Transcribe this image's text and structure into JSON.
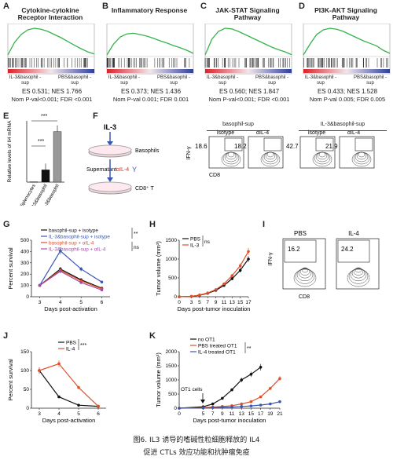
{
  "panelsTop": [
    {
      "letter": "A",
      "title": "Cytokine-cytokine Receptor Interaction",
      "es": "ES 0.531; NES 1.766",
      "nom": "Nom P-val<0.001; FDR <0.001"
    },
    {
      "letter": "B",
      "title": "Inflammatory Response",
      "es": "ES 0.373; NES 1.436",
      "nom": "Nom P-val 0.001; FDR 0.001"
    },
    {
      "letter": "C",
      "title": "JAK-STAT Signaling Pathway",
      "es": "ES 0.560; NES 1.847",
      "nom": "Nom P-val<0.001; FDR <0.001"
    },
    {
      "letter": "D",
      "title": "PI3K-AKT Signaling Pathway",
      "es": "ES 0.433; NES 1.528",
      "nom": "Nom P-val 0.005; FDR 0.005"
    }
  ],
  "gseaLeft": "IL-3&basophil -sup",
  "gseaRight": "PBS&basophil -sup",
  "panelE": {
    "letter": "E",
    "ylabel": "Relative levels of Il4 mRNA",
    "categories": [
      "Splenocytes",
      "PBS&basophil",
      "IL-3&basophil"
    ],
    "stars1": "***",
    "stars2": "***"
  },
  "panelF": {
    "letter": "F",
    "il3": "IL-3",
    "basophils": "Basophils",
    "supernatant": "Supernatant",
    "ail4": "αIL-4",
    "cd8t": "CD8⁺ T",
    "groupLeft": "basophil-sup",
    "groupRight": "IL-3&basophil-sup",
    "isotype": "isotype",
    "ail4col": "αIL-4",
    "values": [
      "18.6",
      "18.2",
      "42.7",
      "21.9"
    ],
    "yaxis": "IFN-γ",
    "xaxis": "CD8"
  },
  "panelG": {
    "letter": "G",
    "ylabel": "Percent survival",
    "xlabel": "Days post-activation",
    "xticks": [
      "3",
      "4",
      "5",
      "6"
    ],
    "yticks": [
      "0",
      "100",
      "200",
      "300",
      "400",
      "500"
    ],
    "legend": [
      "basophil-sup + isotype",
      "IL-3&basophil-sup + isotype",
      "basophil-sup + αIL-4",
      "IL-3&basophil-sup + αIL-4"
    ],
    "sig1": "**",
    "sig2": "ns"
  },
  "panelH": {
    "letter": "H",
    "ylabel": "Tumor volume (mm³)",
    "xlabel": "Days post-tumor inoculation",
    "xticks": [
      "0",
      "3",
      "5",
      "7",
      "9",
      "11",
      "13",
      "15",
      "17"
    ],
    "yticks": [
      "0",
      "500",
      "1000",
      "1500"
    ],
    "legend": [
      "PBS",
      "IL-3"
    ],
    "sig": "ns"
  },
  "panelI": {
    "letter": "I",
    "labels": [
      "PBS",
      "IL-4"
    ],
    "values": [
      "16.2",
      "24.2"
    ],
    "yaxis": "IFN-γ",
    "xaxis": "CD8"
  },
  "panelJ": {
    "letter": "J",
    "ylabel": "Percent survival",
    "xlabel": "Days post-activation",
    "xticks": [
      "3",
      "4",
      "5",
      "6"
    ],
    "yticks": [
      "0",
      "50",
      "100",
      "150"
    ],
    "legend": [
      "PBS",
      "IL-4"
    ],
    "sig": "***"
  },
  "panelK": {
    "letter": "K",
    "ylabel": "Tumor volume (mm³)",
    "xlabel": "Days post-tumor inoculation",
    "xticks": [
      "0",
      "5",
      "7",
      "9",
      "11",
      "13",
      "15",
      "17",
      "19",
      "21"
    ],
    "yticks": [
      "0",
      "500",
      "1000",
      "1500",
      "2000"
    ],
    "legend": [
      "no OT1",
      "PBS treated OT1",
      "IL-4 treated OT1"
    ],
    "sig": "**",
    "arrow": "OT1 cells"
  },
  "caption1": "图6. IL3 诱导的嗜碱性粒细胞释放的 IL4",
  "caption2": "促进 CTLs 效应功能和抗肿瘤免疫",
  "colors": {
    "black": "#111111",
    "blue": "#3a57b5",
    "red": "#e0502a",
    "purple": "#9e4fa0"
  },
  "chart_data": [
    {
      "type": "bar",
      "panel": "E",
      "categories": [
        "Splenocytes",
        "PBS&basophil",
        "IL-3&basophil"
      ],
      "values": [
        1,
        40,
        165
      ],
      "ylim": [
        0,
        200
      ]
    },
    {
      "type": "line",
      "panel": "G",
      "x": [
        3,
        4,
        5,
        6
      ],
      "ylim": [
        0,
        500
      ],
      "series": [
        {
          "name": "basophil-sup + isotype",
          "values": [
            100,
            245,
            150,
            75
          ]
        },
        {
          "name": "IL-3&basophil-sup + isotype",
          "values": [
            100,
            405,
            245,
            130
          ]
        },
        {
          "name": "basophil-sup + αIL-4",
          "values": [
            100,
            235,
            140,
            70
          ]
        },
        {
          "name": "IL-3&basophil-sup + αIL-4",
          "values": [
            100,
            225,
            125,
            60
          ]
        }
      ]
    },
    {
      "type": "line",
      "panel": "H",
      "x": [
        0,
        3,
        5,
        7,
        9,
        11,
        13,
        15,
        17
      ],
      "ylim": [
        0,
        1500
      ],
      "series": [
        {
          "name": "PBS",
          "values": [
            0,
            10,
            40,
            90,
            170,
            300,
            480,
            700,
            1000
          ]
        },
        {
          "name": "IL-3",
          "values": [
            0,
            10,
            45,
            100,
            190,
            340,
            560,
            820,
            1200
          ]
        }
      ]
    },
    {
      "type": "line",
      "panel": "J",
      "x": [
        3,
        4,
        5,
        6
      ],
      "ylim": [
        0,
        150
      ],
      "series": [
        {
          "name": "PBS",
          "values": [
            100,
            30,
            8,
            5
          ]
        },
        {
          "name": "IL-4",
          "values": [
            100,
            118,
            55,
            5
          ]
        }
      ]
    },
    {
      "type": "line",
      "panel": "K",
      "x": [
        0,
        5,
        7,
        9,
        11,
        13,
        15,
        17,
        19,
        21
      ],
      "ylim": [
        0,
        2000
      ],
      "series": [
        {
          "name": "no OT1",
          "values": [
            0,
            50,
            150,
            350,
            650,
            1000,
            1200,
            1450,
            null,
            null
          ]
        },
        {
          "name": "PBS treated OT1",
          "values": [
            0,
            20,
            40,
            60,
            90,
            150,
            230,
            400,
            700,
            1050
          ]
        },
        {
          "name": "IL-4 treated OT1",
          "values": [
            0,
            10,
            20,
            30,
            40,
            60,
            80,
            110,
            150,
            230
          ]
        }
      ]
    }
  ]
}
